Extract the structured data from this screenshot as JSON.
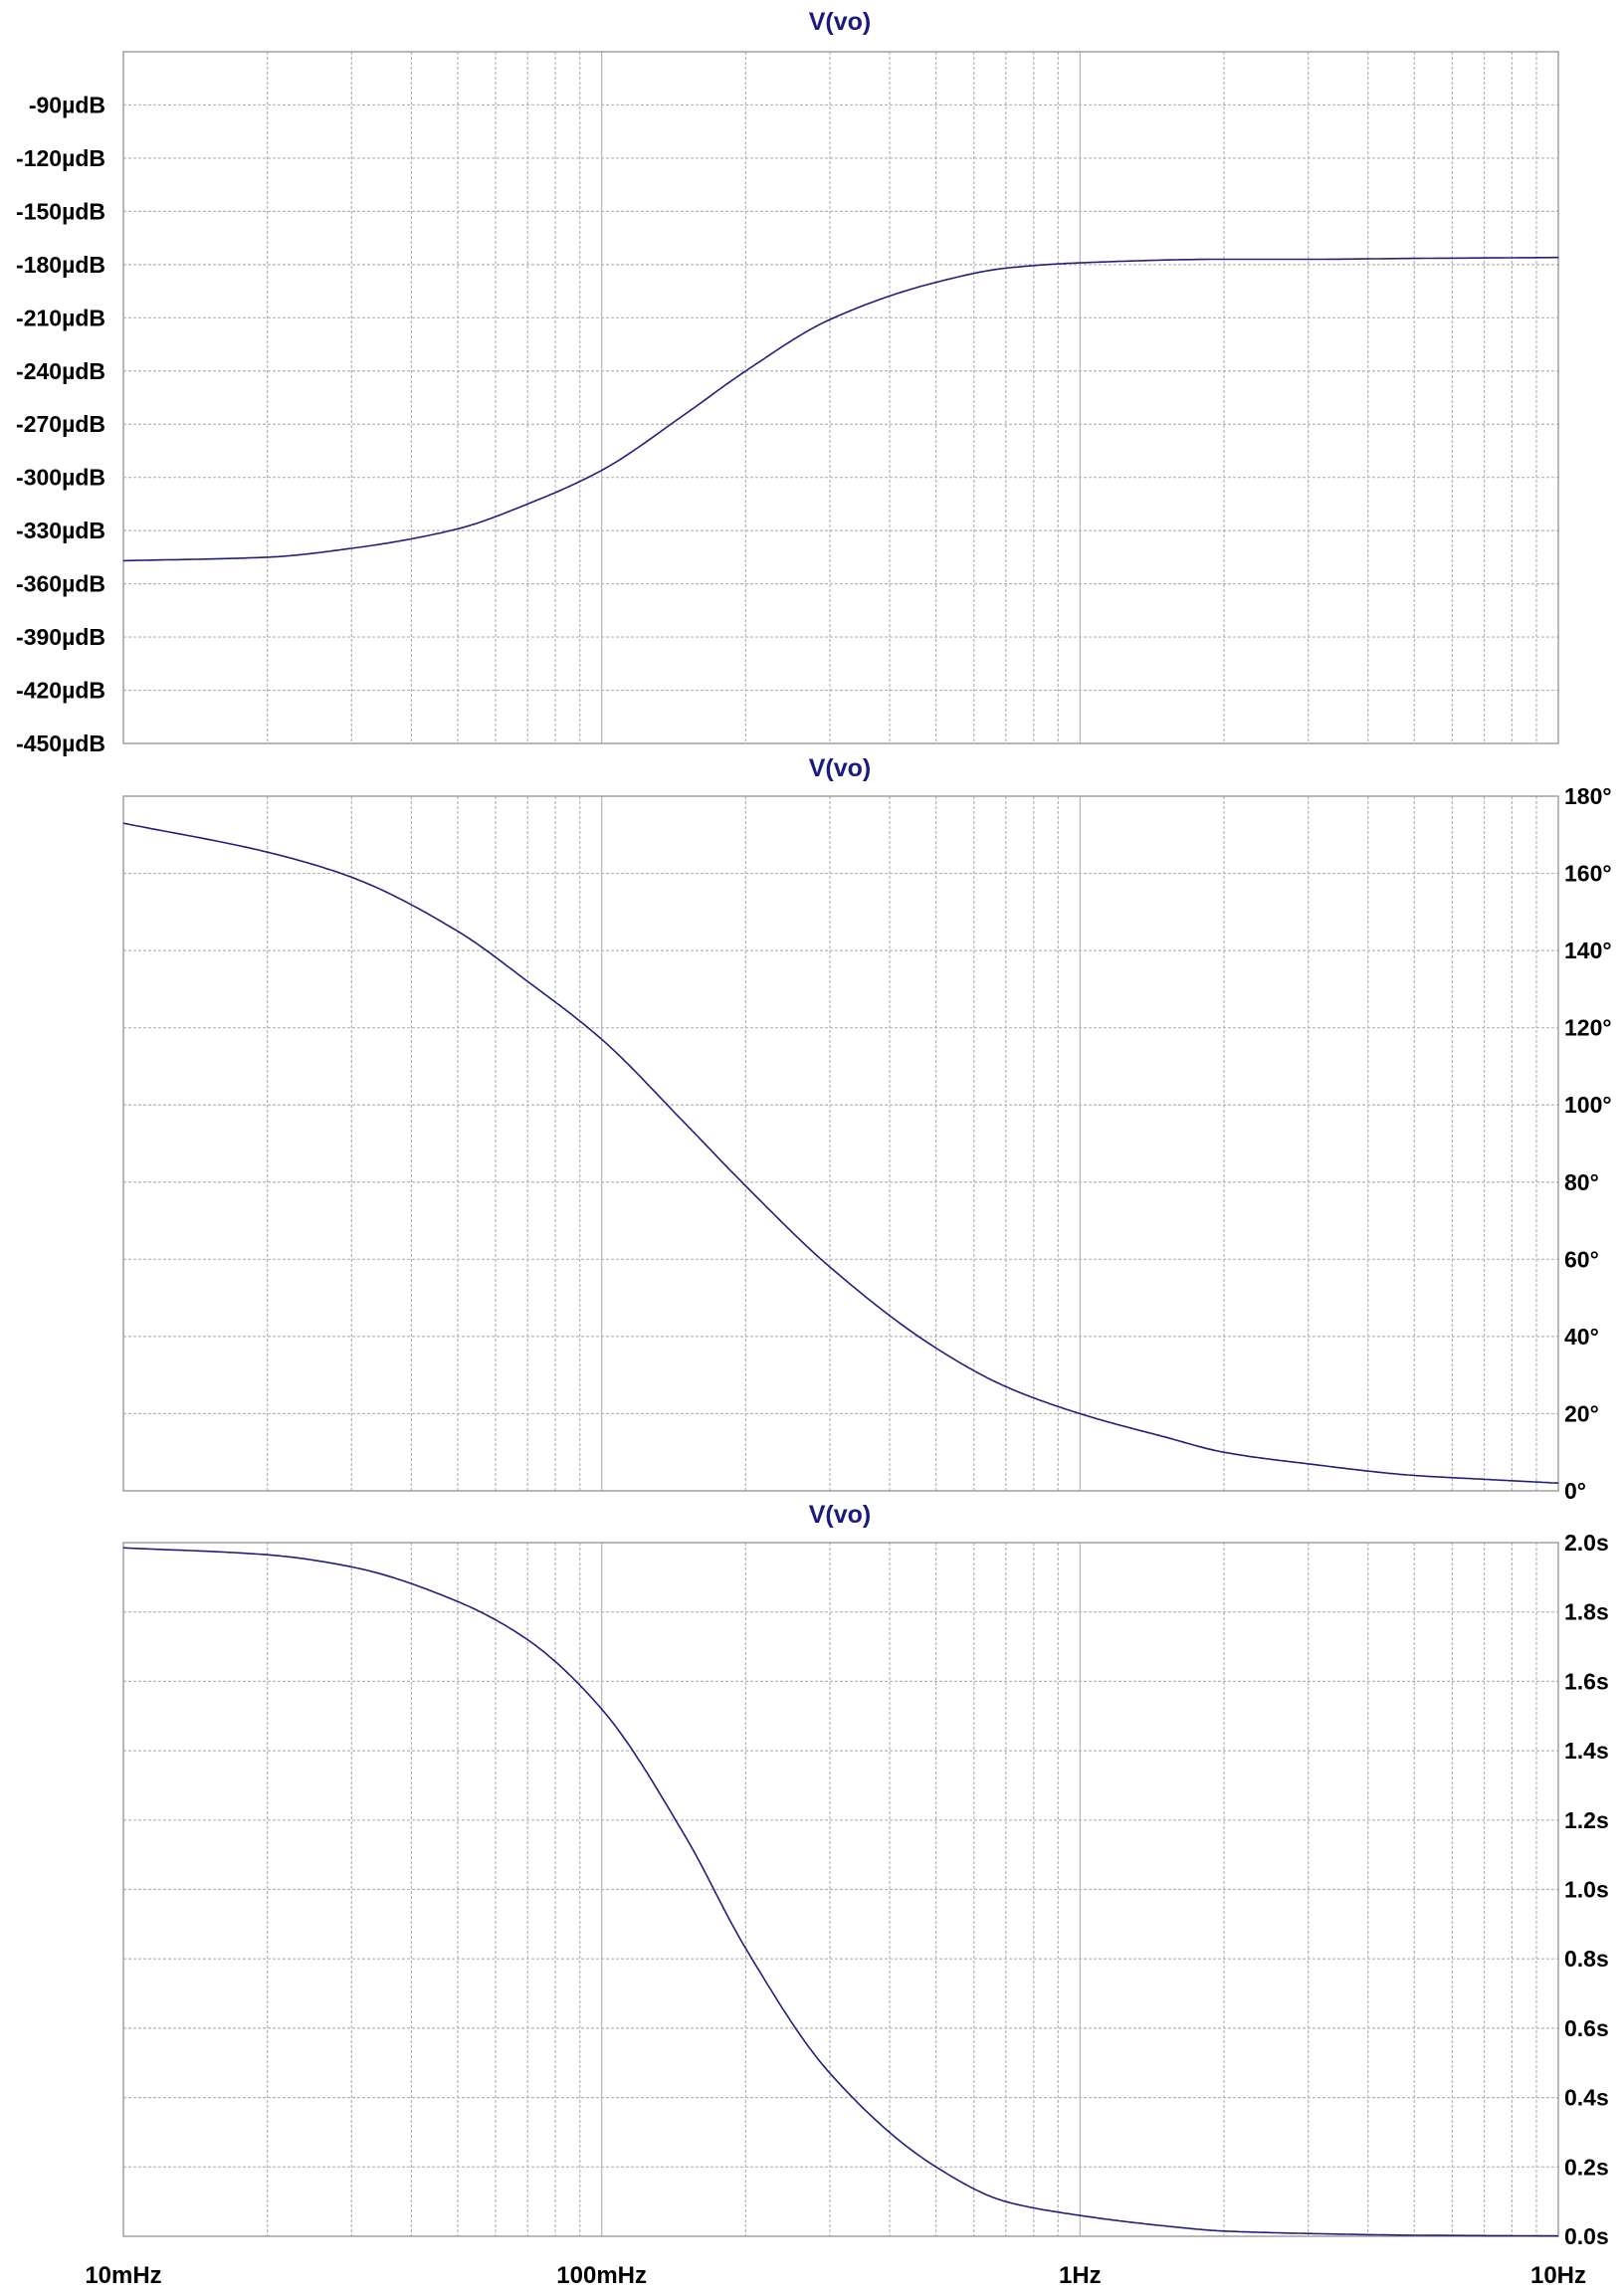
{
  "colors": {
    "trace": "#20207a",
    "title": "#1a1a80",
    "grid": "#b4b4b4",
    "frame": "#a0a0a0",
    "axis_text": "#000000",
    "background": "#ffffff"
  },
  "chart_data": [
    {
      "type": "line",
      "title": "V(vo)",
      "x_scale": "log",
      "xlim": [
        0.01,
        10
      ],
      "y_ticks": [
        "-90µdB",
        "-120µdB",
        "-150µdB",
        "-180µdB",
        "-210µdB",
        "-240µdB",
        "-270µdB",
        "-300µdB",
        "-330µdB",
        "-360µdB",
        "-390µdB",
        "-420µdB",
        "-450µdB"
      ],
      "y_tick_values": [
        -90,
        -120,
        -150,
        -180,
        -210,
        -240,
        -270,
        -300,
        -330,
        -360,
        -390,
        -420,
        -450
      ],
      "y_axis_side": "left",
      "ylim": [
        -450,
        -60
      ],
      "grid": true,
      "series": [
        {
          "x": [
            0.01,
            0.02,
            0.03,
            0.05,
            0.07,
            0.1,
            0.15,
            0.2,
            0.3,
            0.5,
            0.7,
            1,
            2,
            3,
            5,
            10
          ],
          "y": [
            -347,
            -345,
            -340,
            -329,
            -315,
            -296,
            -264,
            -240,
            -211,
            -190,
            -182,
            -179,
            -177,
            -177,
            -176.5,
            -176
          ]
        }
      ]
    },
    {
      "type": "line",
      "title": "V(vo)",
      "x_scale": "log",
      "xlim": [
        0.01,
        10
      ],
      "y_ticks": [
        "180°",
        "160°",
        "140°",
        "120°",
        "100°",
        "80°",
        "60°",
        "40°",
        "20°",
        "0°"
      ],
      "y_tick_values": [
        180,
        160,
        140,
        120,
        100,
        80,
        60,
        40,
        20,
        0
      ],
      "y_axis_side": "right",
      "ylim": [
        0,
        180
      ],
      "grid": true,
      "series": [
        {
          "x": [
            0.01,
            0.02,
            0.03,
            0.05,
            0.07,
            0.1,
            0.15,
            0.2,
            0.3,
            0.5,
            0.7,
            1,
            1.5,
            2,
            3,
            5,
            7,
            10
          ],
          "y": [
            173,
            165.5,
            159,
            145,
            132,
            117,
            95,
            79,
            58,
            37,
            27,
            20,
            14,
            10,
            7,
            4,
            3,
            2
          ]
        }
      ]
    },
    {
      "type": "line",
      "title": "V(vo)",
      "x_scale": "log",
      "xlim": [
        0.01,
        10
      ],
      "x_ticks": [
        "10mHz",
        "100mHz",
        "1Hz",
        "10Hz"
      ],
      "x_tick_values": [
        0.01,
        0.1,
        1,
        10
      ],
      "y_ticks": [
        "2.0s",
        "1.8s",
        "1.6s",
        "1.4s",
        "1.2s",
        "1.0s",
        "0.8s",
        "0.6s",
        "0.4s",
        "0.2s",
        "0.0s"
      ],
      "y_tick_values": [
        2.0,
        1.8,
        1.6,
        1.4,
        1.2,
        1.0,
        0.8,
        0.6,
        0.4,
        0.2,
        0.0
      ],
      "y_axis_side": "right",
      "ylim": [
        0,
        2.0
      ],
      "grid": true,
      "series": [
        {
          "x": [
            0.01,
            0.02,
            0.03,
            0.05,
            0.07,
            0.1,
            0.15,
            0.2,
            0.3,
            0.5,
            0.7,
            1,
            1.5,
            2,
            3,
            5,
            10
          ],
          "y": [
            1.985,
            1.965,
            1.93,
            1.83,
            1.72,
            1.52,
            1.15,
            0.83,
            0.47,
            0.2,
            0.1,
            0.06,
            0.03,
            0.015,
            0.008,
            0.003,
            0.001
          ]
        }
      ]
    }
  ]
}
